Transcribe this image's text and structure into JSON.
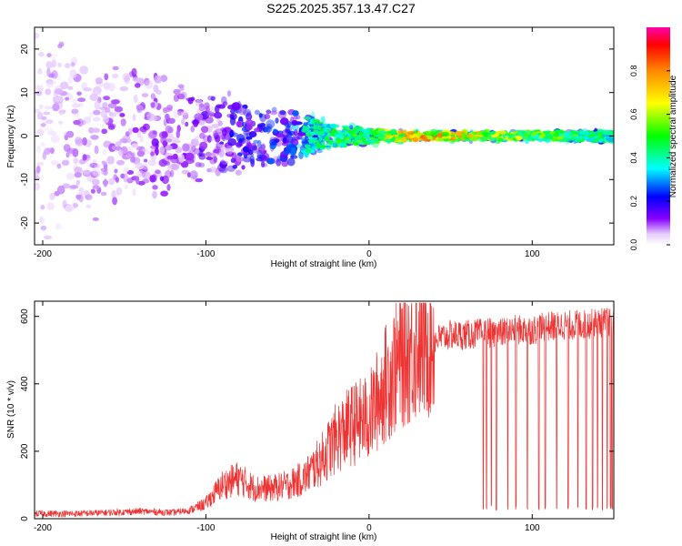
{
  "figure_title": "S225.2025.357.13.47.C27",
  "chart_data": [
    {
      "type": "heatmap",
      "title": "",
      "xlabel": "Height of straight line (km)",
      "ylabel": "Frequency (Hz)",
      "xlim": [
        -205,
        150
      ],
      "ylim": [
        -25,
        25
      ],
      "xticks": [
        -200,
        -100,
        0,
        100
      ],
      "yticks": [
        -20,
        -10,
        0,
        10,
        20
      ],
      "colorbar": {
        "label": "Normalized spectral amplitude",
        "range": [
          0,
          1
        ],
        "ticks": [
          0.0,
          0.2,
          0.4,
          0.6,
          0.8
        ]
      },
      "description_points": [
        {
          "x": -205,
          "freq_spread": 25,
          "amplitude": 0.12
        },
        {
          "x": -110,
          "freq_spread": 12,
          "amplitude": 0.25
        },
        {
          "x": -60,
          "freq_spread": 8,
          "amplitude": 0.35
        },
        {
          "x": -20,
          "freq_spread": 3,
          "amplitude": 0.55
        },
        {
          "x": 0,
          "freq_spread": 2,
          "amplitude": 0.6
        },
        {
          "x": 30,
          "freq_spread": 1,
          "amplitude": 0.9
        },
        {
          "x": 80,
          "freq_spread": 1,
          "amplitude": 0.7
        },
        {
          "x": 150,
          "freq_spread": 1.5,
          "amplitude": 0.5
        }
      ]
    },
    {
      "type": "line",
      "title": "",
      "xlabel": "Height of straight line (km)",
      "ylabel": "SNR (10 * v/v)",
      "xlim": [
        -205,
        150
      ],
      "ylim": [
        0,
        645
      ],
      "xticks": [
        -200,
        -100,
        0,
        100
      ],
      "yticks": [
        0,
        200,
        400,
        600
      ],
      "series": [
        {
          "name": "SNR",
          "color": "#ee3333",
          "x": [
            -205,
            -180,
            -160,
            -140,
            -120,
            -110,
            -100,
            -90,
            -80,
            -70,
            -60,
            -50,
            -40,
            -30,
            -20,
            -10,
            0,
            10,
            20,
            30,
            40,
            50,
            60,
            70,
            80,
            90,
            100,
            110,
            120,
            130,
            140,
            150
          ],
          "y": [
            15,
            15,
            18,
            22,
            18,
            25,
            45,
            100,
            120,
            90,
            90,
            100,
            120,
            170,
            240,
            280,
            300,
            400,
            480,
            520,
            530,
            545,
            545,
            550,
            550,
            560,
            560,
            570,
            575,
            575,
            580,
            585
          ]
        }
      ],
      "dropouts_x": [
        70,
        72,
        75,
        78,
        85,
        90,
        97,
        104,
        108,
        115,
        122,
        128,
        133,
        137,
        140,
        143,
        146,
        148,
        149
      ]
    }
  ]
}
